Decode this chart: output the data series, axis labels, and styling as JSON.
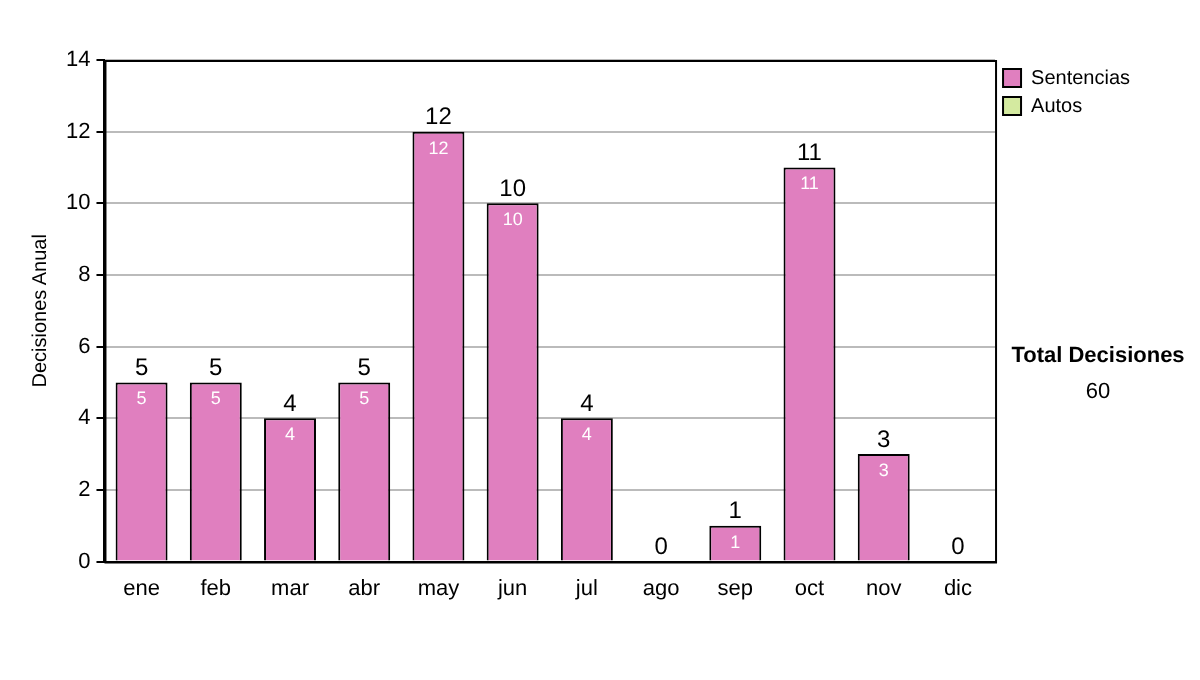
{
  "chart_data": {
    "type": "bar",
    "stacked": true,
    "ylabel": "Decisiones Anual",
    "categories": [
      "ene",
      "feb",
      "mar",
      "abr",
      "may",
      "jun",
      "jul",
      "ago",
      "sep",
      "oct",
      "nov",
      "dic"
    ],
    "series": [
      {
        "name": "Sentencias",
        "color": "#e07fbf",
        "values": [
          5,
          5,
          4,
          5,
          12,
          10,
          4,
          0,
          1,
          11,
          3,
          0
        ],
        "value_labels": [
          "5",
          "5",
          "4",
          "5",
          "12",
          "10",
          "4",
          null,
          "1",
          "11",
          "3",
          null
        ]
      },
      {
        "name": "Autos",
        "color": "#d4eaa0",
        "values": [
          0,
          0,
          0,
          0,
          0,
          0,
          0,
          0,
          0,
          0,
          0,
          0
        ]
      }
    ],
    "totals": [
      "5",
      "5",
      "4",
      "5",
      "12",
      "10",
      "4",
      "0",
      "1",
      "11",
      "3",
      "0"
    ],
    "ylim": [
      0,
      14
    ],
    "yticks": [
      0,
      2,
      4,
      6,
      8,
      10,
      12,
      14
    ],
    "grid": "y",
    "legend": "right",
    "annotations": [
      "Total Decisiones",
      "60"
    ]
  }
}
